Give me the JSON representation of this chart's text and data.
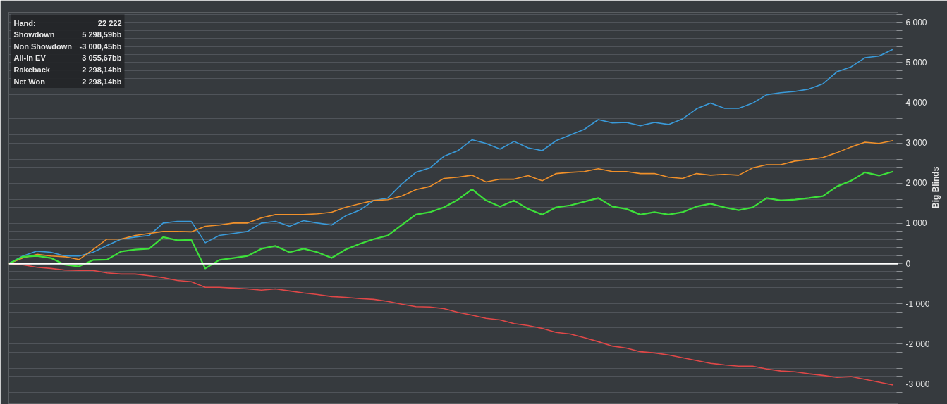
{
  "chart_data": {
    "type": "line",
    "ylabel": "Big Blinds",
    "categories": [
      null,
      null,
      null,
      null,
      null,
      null,
      null,
      null,
      null,
      null,
      null,
      null,
      null,
      null,
      null,
      null,
      null,
      null,
      null,
      null,
      null,
      null,
      null,
      null,
      null,
      null,
      null,
      null,
      null,
      null,
      null,
      null,
      null,
      null,
      null,
      null,
      null,
      null,
      null,
      null,
      null,
      null,
      null,
      null,
      null,
      null,
      null,
      null,
      null,
      null,
      null,
      null,
      null,
      null,
      null,
      null,
      null,
      null,
      null,
      null,
      null,
      null,
      null,
      null
    ],
    "series": [
      {
        "color": "#3a9ad9",
        "values": [
          0,
          190,
          310,
          280,
          190,
          190,
          280,
          450,
          610,
          660,
          700,
          1010,
          1050,
          1050,
          520,
          700,
          750,
          800,
          1010,
          1050,
          930,
          1070,
          1010,
          960,
          1190,
          1330,
          1570,
          1630,
          1980,
          2270,
          2380,
          2670,
          2810,
          3080,
          2990,
          2850,
          3040,
          2880,
          2810,
          3060,
          3200,
          3340,
          3580,
          3500,
          3510,
          3430,
          3510,
          3460,
          3600,
          3850,
          3990,
          3860,
          3860,
          3990,
          4200,
          4250,
          4280,
          4340,
          4470,
          4770,
          4890,
          5120,
          5160,
          5330
        ]
      },
      {
        "color": "#f0902a",
        "values": [
          0,
          140,
          230,
          190,
          170,
          100,
          350,
          610,
          610,
          700,
          750,
          800,
          800,
          790,
          930,
          960,
          1010,
          1010,
          1140,
          1220,
          1220,
          1220,
          1240,
          1280,
          1400,
          1490,
          1570,
          1590,
          1680,
          1840,
          1920,
          2120,
          2150,
          2200,
          2030,
          2100,
          2100,
          2190,
          2060,
          2240,
          2270,
          2290,
          2360,
          2290,
          2290,
          2240,
          2240,
          2150,
          2120,
          2240,
          2200,
          2220,
          2200,
          2380,
          2460,
          2460,
          2550,
          2590,
          2640,
          2760,
          2900,
          3020,
          2990,
          3060
        ]
      },
      {
        "color": "#3de03a",
        "values": [
          0,
          170,
          190,
          140,
          -30,
          -70,
          90,
          100,
          300,
          350,
          370,
          660,
          580,
          590,
          -120,
          90,
          140,
          190,
          370,
          440,
          280,
          370,
          280,
          140,
          350,
          490,
          610,
          700,
          960,
          1220,
          1280,
          1400,
          1590,
          1850,
          1570,
          1420,
          1570,
          1360,
          1220,
          1400,
          1450,
          1540,
          1630,
          1420,
          1360,
          1220,
          1280,
          1220,
          1280,
          1420,
          1490,
          1400,
          1330,
          1400,
          1630,
          1570,
          1590,
          1630,
          1680,
          1920,
          2060,
          2270,
          2190,
          2290
        ]
      },
      {
        "color": "#e04848",
        "values": [
          0,
          -30,
          -90,
          -120,
          -160,
          -170,
          -170,
          -230,
          -260,
          -260,
          -300,
          -350,
          -420,
          -450,
          -590,
          -590,
          -610,
          -630,
          -660,
          -630,
          -680,
          -730,
          -770,
          -820,
          -840,
          -870,
          -890,
          -940,
          -1010,
          -1070,
          -1080,
          -1120,
          -1210,
          -1280,
          -1360,
          -1400,
          -1490,
          -1540,
          -1610,
          -1710,
          -1750,
          -1840,
          -1940,
          -2050,
          -2100,
          -2190,
          -2220,
          -2270,
          -2340,
          -2410,
          -2480,
          -2520,
          -2550,
          -2550,
          -2620,
          -2670,
          -2690,
          -2740,
          -2780,
          -2830,
          -2810,
          -2880,
          -2950,
          -3020
        ]
      }
    ],
    "ylim": [
      -3500,
      6250
    ],
    "yticks": [
      {
        "value": -3400,
        "label": null
      },
      {
        "value": -3200,
        "label": null
      },
      {
        "value": -3000,
        "label": "-3 000"
      },
      {
        "value": -2800,
        "label": null
      },
      {
        "value": -2600,
        "label": null
      },
      {
        "value": -2400,
        "label": null
      },
      {
        "value": -2200,
        "label": null
      },
      {
        "value": -2000,
        "label": "-2 000"
      },
      {
        "value": -1800,
        "label": null
      },
      {
        "value": -1600,
        "label": null
      },
      {
        "value": -1400,
        "label": null
      },
      {
        "value": -1200,
        "label": null
      },
      {
        "value": -1000,
        "label": "-1 000"
      },
      {
        "value": -800,
        "label": null
      },
      {
        "value": -600,
        "label": null
      },
      {
        "value": -400,
        "label": null
      },
      {
        "value": -200,
        "label": null
      },
      0,
      {
        "value": 200,
        "label": null
      },
      {
        "value": 400,
        "label": null
      },
      {
        "value": 600,
        "label": null
      },
      {
        "value": 800,
        "label": null
      },
      {
        "value": 1000,
        "label": "1 000"
      },
      {
        "value": 1200,
        "label": null
      },
      {
        "value": 1400,
        "label": null
      },
      {
        "value": 1600,
        "label": null
      },
      {
        "value": 1800,
        "label": null
      },
      {
        "value": 2000,
        "label": "2 000"
      },
      {
        "value": 2200,
        "label": null
      },
      {
        "value": 2400,
        "label": null
      },
      {
        "value": 2600,
        "label": null
      },
      {
        "value": 2800,
        "label": null
      },
      {
        "value": 3000,
        "label": "3 000"
      },
      {
        "value": 3200,
        "label": null
      },
      {
        "value": 3400,
        "label": null
      },
      {
        "value": 3600,
        "label": null
      },
      {
        "value": 3800,
        "label": null
      },
      {
        "value": 4000,
        "label": "4 000"
      },
      {
        "value": 4200,
        "label": null
      },
      {
        "value": 4400,
        "label": null
      },
      {
        "value": 4600,
        "label": null
      },
      {
        "value": 4800,
        "label": null
      },
      {
        "value": 5000,
        "label": "5 000"
      },
      {
        "value": 5200,
        "label": null
      },
      {
        "value": 5400,
        "label": null
      },
      {
        "value": 5600,
        "label": null
      },
      {
        "value": 5800,
        "label": null
      },
      {
        "value": 6000,
        "label": "6 000"
      },
      {
        "value": 6200,
        "label": null
      }
    ],
    "ref_lines": [
      {
        "axis": "y",
        "value": 0,
        "color": "#ffffff"
      }
    ],
    "annotations": [
      "Hand:",
      "22 222",
      "Showdown",
      "5 298,59bb",
      "Non Showdown",
      "-3 000,45bb",
      "All-In EV",
      "3 055,67bb",
      "Rakeback",
      "2 298,14bb",
      "Net Won",
      "2 298,14bb"
    ],
    "grid": "y",
    "tick_labels": "y",
    "marker": "none",
    "line_style": "solid"
  }
}
